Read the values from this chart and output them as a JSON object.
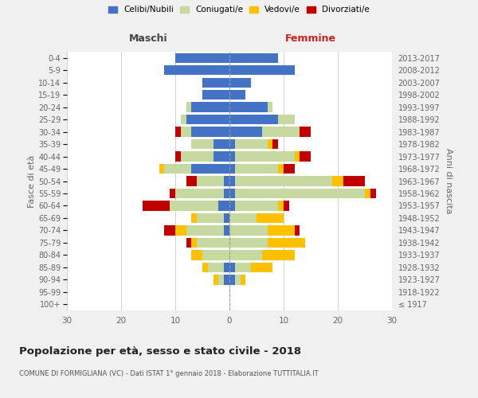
{
  "age_groups": [
    "100+",
    "95-99",
    "90-94",
    "85-89",
    "80-84",
    "75-79",
    "70-74",
    "65-69",
    "60-64",
    "55-59",
    "50-54",
    "45-49",
    "40-44",
    "35-39",
    "30-34",
    "25-29",
    "20-24",
    "15-19",
    "10-14",
    "5-9",
    "0-4"
  ],
  "birth_years": [
    "≤ 1917",
    "1918-1922",
    "1923-1927",
    "1928-1932",
    "1933-1937",
    "1938-1942",
    "1943-1947",
    "1948-1952",
    "1953-1957",
    "1958-1962",
    "1963-1967",
    "1968-1972",
    "1973-1977",
    "1978-1982",
    "1983-1987",
    "1988-1992",
    "1993-1997",
    "1998-2002",
    "2003-2007",
    "2008-2012",
    "2013-2017"
  ],
  "male": {
    "celibe": [
      0,
      0,
      1,
      1,
      0,
      0,
      1,
      1,
      2,
      1,
      1,
      7,
      3,
      3,
      7,
      8,
      7,
      5,
      5,
      12,
      10
    ],
    "coniugato": [
      0,
      0,
      1,
      3,
      5,
      6,
      7,
      5,
      9,
      9,
      5,
      5,
      6,
      4,
      2,
      1,
      1,
      0,
      0,
      0,
      0
    ],
    "vedovo": [
      0,
      0,
      1,
      1,
      2,
      1,
      2,
      1,
      0,
      0,
      0,
      1,
      0,
      0,
      0,
      0,
      0,
      0,
      0,
      0,
      0
    ],
    "divorziato": [
      0,
      0,
      0,
      0,
      0,
      1,
      2,
      0,
      5,
      1,
      2,
      0,
      1,
      0,
      1,
      0,
      0,
      0,
      0,
      0,
      0
    ]
  },
  "female": {
    "nubile": [
      0,
      0,
      1,
      1,
      0,
      0,
      0,
      0,
      1,
      1,
      1,
      1,
      1,
      1,
      6,
      9,
      7,
      3,
      4,
      12,
      9
    ],
    "coniugata": [
      0,
      0,
      1,
      3,
      6,
      7,
      7,
      5,
      8,
      24,
      18,
      8,
      11,
      6,
      7,
      3,
      1,
      0,
      0,
      0,
      0
    ],
    "vedova": [
      0,
      0,
      1,
      4,
      6,
      7,
      5,
      5,
      1,
      1,
      2,
      1,
      1,
      1,
      0,
      0,
      0,
      0,
      0,
      0,
      0
    ],
    "divorziata": [
      0,
      0,
      0,
      0,
      0,
      0,
      1,
      0,
      1,
      1,
      4,
      2,
      2,
      1,
      2,
      0,
      0,
      0,
      0,
      0,
      0
    ]
  },
  "colors": {
    "celibe": "#4472c4",
    "coniugato": "#c5d9a0",
    "vedovo": "#ffc000",
    "divorziato": "#c00000"
  },
  "legend_labels": [
    "Celibi/Nubili",
    "Coniugati/e",
    "Vedovi/e",
    "Divorziati/e"
  ],
  "legend_colors": [
    "#4472c4",
    "#c5d9a0",
    "#ffc000",
    "#c00000"
  ],
  "title": "Popolazione per età, sesso e stato civile - 2018",
  "subtitle": "COMUNE DI FORMIGLIANA (VC) - Dati ISTAT 1° gennaio 2018 - Elaborazione TUTTITALIA.IT",
  "xlabel_left": "Maschi",
  "xlabel_right": "Femmine",
  "ylabel_left": "Fasce di età",
  "ylabel_right": "Anni di nascita",
  "xlim": 30,
  "background_color": "#f0f0f0",
  "plot_background": "#ffffff",
  "grid_color": "#d0d0d0"
}
